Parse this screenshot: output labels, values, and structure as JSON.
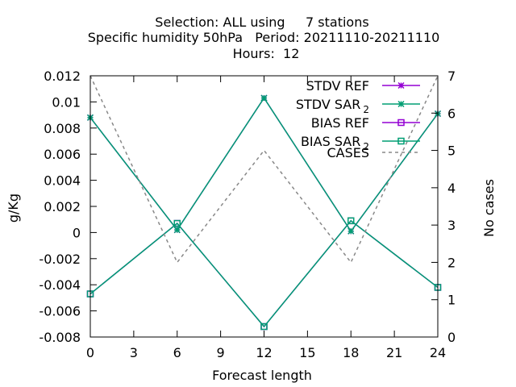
{
  "chart_data": {
    "type": "line",
    "title_lines": [
      "Selection: ALL using     7 stations",
      "Specific humidity 50hPa   Period: 20211110-20211110",
      "Hours:  12"
    ],
    "xlabel": "Forecast length",
    "ylabel": "g/Kg",
    "y2label": "No cases",
    "xlim": [
      0,
      24
    ],
    "ylim": [
      -0.008,
      0.012
    ],
    "y2lim": [
      0,
      7
    ],
    "xticks": [
      "0",
      "3",
      "6",
      "9",
      "12",
      "15",
      "18",
      "21",
      "24"
    ],
    "yticks": [
      "-0.008",
      "-0.006",
      "-0.004",
      "-0.002",
      "0",
      "0.002",
      "0.004",
      "0.006",
      "0.008",
      "0.01",
      "0.012"
    ],
    "y2ticks": [
      "0",
      "1",
      "2",
      "3",
      "4",
      "5",
      "6",
      "7"
    ],
    "grid": false,
    "legend_position": "top-right",
    "x": [
      0,
      6,
      12,
      18,
      24
    ],
    "series": [
      {
        "name": "STDV REF",
        "label_main": "STDV REF",
        "label_sub": "",
        "color": "#9400d3",
        "marker": "star",
        "dash": "",
        "axis": "y1",
        "values": [
          0.0088,
          0.0002,
          0.0103,
          0.0001,
          0.0091
        ]
      },
      {
        "name": "STDV SAR 2",
        "label_main": "STDV SAR",
        "label_sub": "2",
        "color": "#009e73",
        "marker": "star",
        "dash": "",
        "axis": "y1",
        "values": [
          0.0088,
          0.0002,
          0.0103,
          0.0001,
          0.0091
        ]
      },
      {
        "name": "BIAS REF",
        "label_main": "BIAS REF",
        "label_sub": "",
        "color": "#9400d3",
        "marker": "square",
        "dash": "",
        "axis": "y1",
        "values": [
          -0.0047,
          0.0007,
          -0.0072,
          0.0009,
          -0.0042
        ]
      },
      {
        "name": "BIAS SAR 2",
        "label_main": "BIAS SAR",
        "label_sub": "2",
        "color": "#009e73",
        "marker": "square",
        "dash": "",
        "axis": "y1",
        "values": [
          -0.0047,
          0.0007,
          -0.0072,
          0.0009,
          -0.0042
        ]
      },
      {
        "name": "CASES",
        "label_main": "CASES",
        "label_sub": "",
        "color": "#888888",
        "marker": "none",
        "dash": "4,4",
        "axis": "y2",
        "values": [
          7,
          2,
          5,
          2,
          7
        ]
      }
    ]
  }
}
